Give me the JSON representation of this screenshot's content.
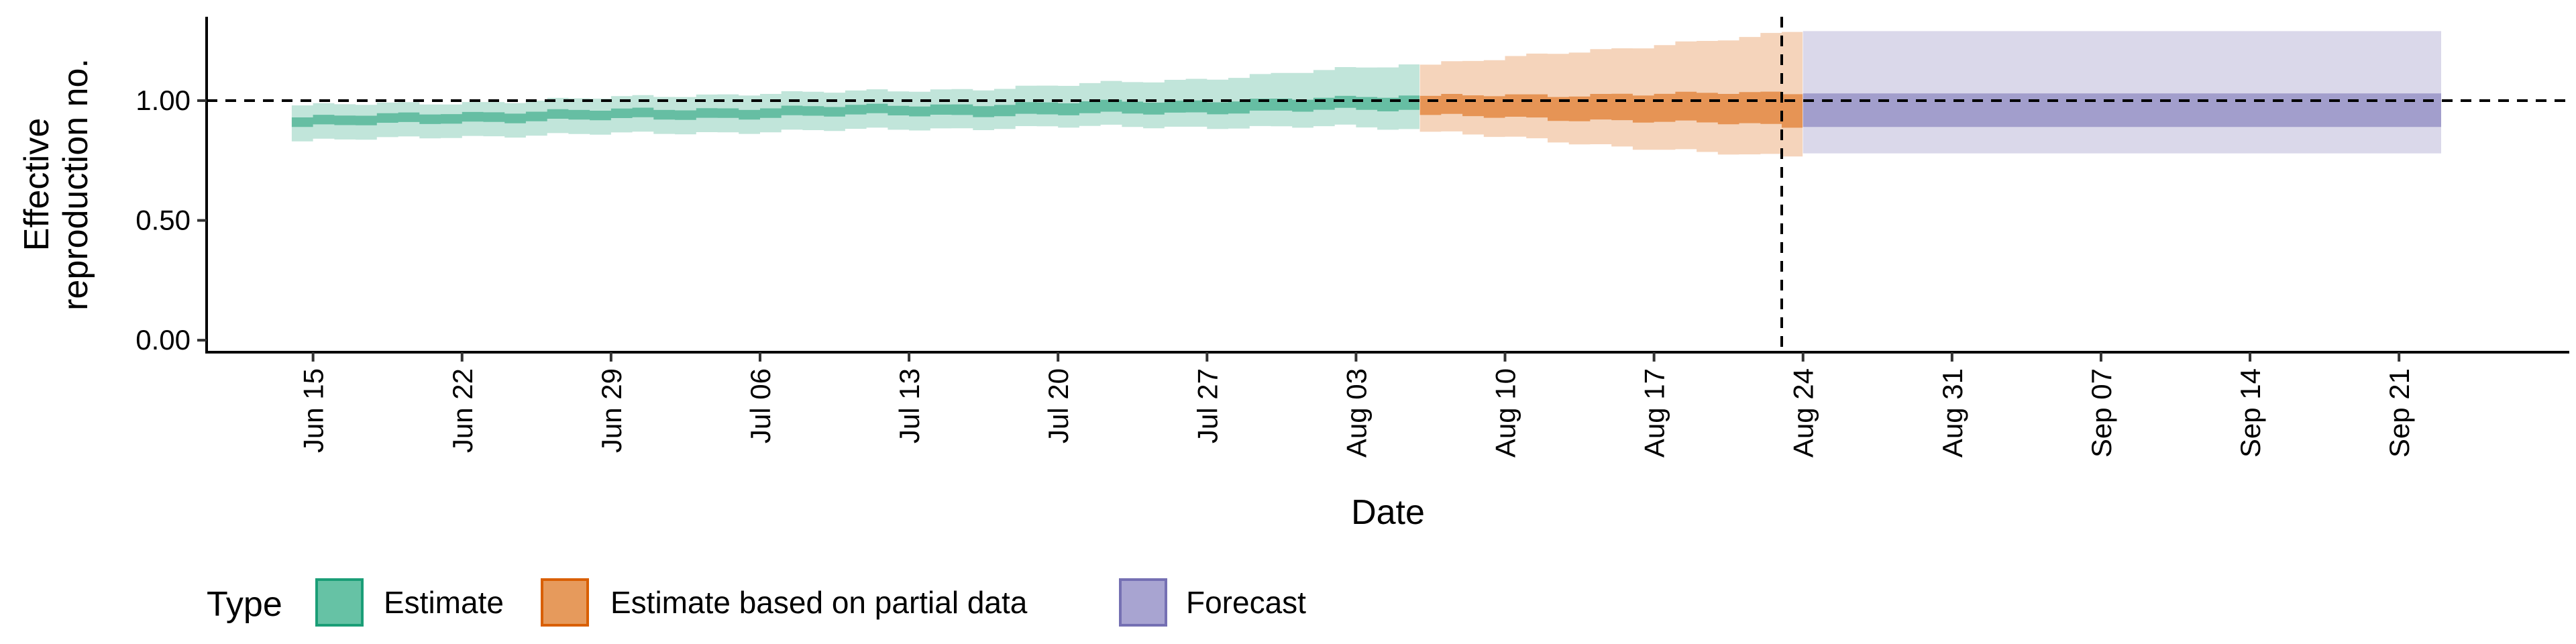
{
  "chart_data": {
    "type": "area",
    "xlabel": "Date",
    "ylabel_lines": [
      "Effective",
      "reproduction no."
    ],
    "x_range": [
      "2020-06-10",
      "2020-09-29"
    ],
    "ylim": [
      -0.05,
      1.35
    ],
    "yticks": [
      {
        "value": 0.0,
        "label": "0.00"
      },
      {
        "value": 0.5,
        "label": "0.50"
      },
      {
        "value": 1.0,
        "label": "1.00"
      }
    ],
    "xticks": [
      {
        "date": "2020-06-15",
        "label": "Jun 15"
      },
      {
        "date": "2020-06-22",
        "label": "Jun 22"
      },
      {
        "date": "2020-06-29",
        "label": "Jun 29"
      },
      {
        "date": "2020-07-06",
        "label": "Jul 06"
      },
      {
        "date": "2020-07-13",
        "label": "Jul 13"
      },
      {
        "date": "2020-07-20",
        "label": "Jul 20"
      },
      {
        "date": "2020-07-27",
        "label": "Jul 27"
      },
      {
        "date": "2020-08-03",
        "label": "Aug 03"
      },
      {
        "date": "2020-08-10",
        "label": "Aug 10"
      },
      {
        "date": "2020-08-17",
        "label": "Aug 17"
      },
      {
        "date": "2020-08-24",
        "label": "Aug 24"
      },
      {
        "date": "2020-08-31",
        "label": "Aug 31"
      },
      {
        "date": "2020-09-07",
        "label": "Sep 07"
      },
      {
        "date": "2020-09-14",
        "label": "Sep 14"
      },
      {
        "date": "2020-09-21",
        "label": "Sep 21"
      }
    ],
    "reference_hline": 1.0,
    "reference_vline_date": "2020-08-23",
    "grid": false,
    "legend": {
      "title": "Type",
      "position": "bottom-left",
      "items": [
        {
          "label": "Estimate",
          "fill": "#66C2A5",
          "stroke": "#1B9E77"
        },
        {
          "label": "Estimate based on partial data",
          "fill": "#E69A5C",
          "stroke": "#D95F02"
        },
        {
          "label": "Forecast",
          "fill": "#A8A4D1",
          "stroke": "#7570B3"
        }
      ]
    },
    "series": [
      {
        "name": "Estimate",
        "color": "#1B9E77",
        "x": [
          "2020-06-14",
          "2020-06-21",
          "2020-06-28",
          "2020-07-05",
          "2020-07-12",
          "2020-07-19",
          "2020-07-26",
          "2020-08-02",
          "2020-08-05"
        ],
        "outer_lower": [
          0.83,
          0.85,
          0.86,
          0.87,
          0.88,
          0.89,
          0.89,
          0.89,
          0.88
        ],
        "outer_upper": [
          0.98,
          0.99,
          1.01,
          1.03,
          1.04,
          1.06,
          1.09,
          1.13,
          1.15
        ],
        "inner_lower": [
          0.89,
          0.91,
          0.92,
          0.93,
          0.94,
          0.94,
          0.95,
          0.96,
          0.96
        ],
        "inner_upper": [
          0.93,
          0.95,
          0.96,
          0.97,
          0.98,
          0.99,
          1.0,
          1.01,
          1.02
        ]
      },
      {
        "name": "Estimate based on partial data",
        "color": "#D95F02",
        "x": [
          "2020-08-06",
          "2020-08-09",
          "2020-08-12",
          "2020-08-15",
          "2020-08-18",
          "2020-08-21",
          "2020-08-23"
        ],
        "outer_lower": [
          0.87,
          0.85,
          0.83,
          0.81,
          0.79,
          0.77,
          0.77
        ],
        "outer_upper": [
          1.15,
          1.17,
          1.2,
          1.22,
          1.24,
          1.26,
          1.29
        ],
        "inner_lower": [
          0.94,
          0.93,
          0.92,
          0.92,
          0.91,
          0.9,
          0.89
        ],
        "inner_upper": [
          1.02,
          1.02,
          1.02,
          1.03,
          1.03,
          1.03,
          1.03
        ]
      },
      {
        "name": "Forecast",
        "color": "#7570B3",
        "x": [
          "2020-08-24",
          "2020-09-22"
        ],
        "outer_lower": [
          0.78,
          0.78
        ],
        "outer_upper": [
          1.29,
          1.29
        ],
        "inner_lower": [
          0.89,
          0.89
        ],
        "inner_upper": [
          1.03,
          1.03
        ]
      }
    ]
  }
}
